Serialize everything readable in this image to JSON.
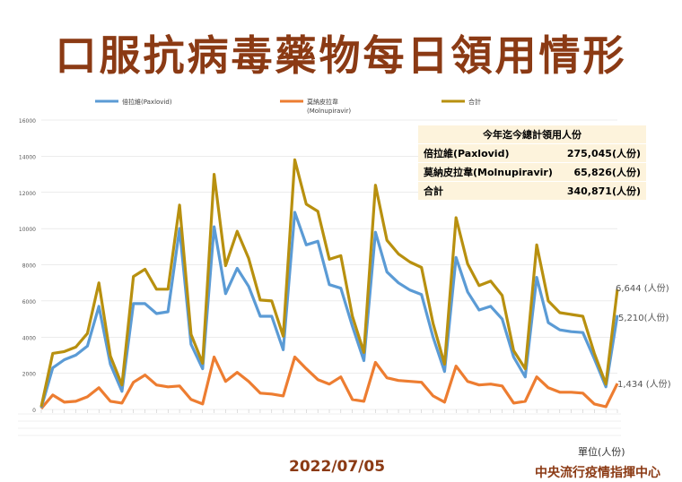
{
  "title": "口服抗病毒藥物每日領用情形",
  "date": "2022/07/05",
  "organization": "中央流行疫情指揮中心",
  "unit_label": "單位(人份)",
  "summary_table": {
    "header": "今年迄今總計領用人份",
    "rows": [
      {
        "label": "倍拉維(Paxlovid)",
        "value": "275,045(人份)"
      },
      {
        "label": "莫納皮拉韋(Molnupiravir)",
        "value": "65,826(人份)"
      },
      {
        "label": "合計",
        "value": "340,871(人份)"
      }
    ]
  },
  "end_labels": {
    "total": "6,644 (人份)",
    "paxlovid": "5,210(人份)",
    "molnupiravir": "1,434 (人份)"
  },
  "colors": {
    "paxlovid": "#5b9bd5",
    "molnupiravir": "#ed7d31",
    "total": "#b8900f",
    "title": "#8b3a14"
  },
  "chart_data": {
    "type": "line",
    "legend": [
      {
        "name": "倍拉維(Paxlovid)"
      },
      {
        "name": "莫納皮拉韋 (Molnupiravir)"
      },
      {
        "name": "合計"
      }
    ],
    "legend_position": "top",
    "ylim": [
      0,
      16000
    ],
    "yticks": [
      0,
      2000,
      4000,
      6000,
      8000,
      10000,
      12000,
      14000,
      16000
    ],
    "grid": true,
    "series": [
      {
        "name": "倍拉維(Paxlovid)",
        "values": [
          100,
          2300,
          2750,
          3000,
          3500,
          5700,
          2500,
          1000,
          5850,
          5850,
          5300,
          5400,
          10000,
          3600,
          2250,
          10100,
          6400,
          7800,
          6800,
          5150,
          5150,
          3300,
          10900,
          9100,
          9300,
          6900,
          6700,
          4600,
          2700,
          9800,
          7600,
          7000,
          6600,
          6350,
          4000,
          2100,
          8400,
          6500,
          5500,
          5700,
          5000,
          2900,
          1800,
          7300,
          4800,
          4400,
          4300,
          4250,
          2800,
          1250,
          5210
        ]
      },
      {
        "name": "莫納皮拉韋 (Molnupiravir)",
        "values": [
          50,
          800,
          400,
          450,
          700,
          1200,
          450,
          350,
          1500,
          1900,
          1350,
          1250,
          1300,
          550,
          300,
          2900,
          1550,
          2050,
          1550,
          900,
          850,
          750,
          2900,
          2250,
          1650,
          1400,
          1800,
          550,
          450,
          2600,
          1750,
          1600,
          1550,
          1500,
          750,
          400,
          2400,
          1550,
          1350,
          1400,
          1300,
          350,
          450,
          1800,
          1200,
          950,
          950,
          900,
          300,
          150,
          1434
        ]
      },
      {
        "name": "合計",
        "values": [
          150,
          3100,
          3200,
          3450,
          4200,
          7000,
          2950,
          1350,
          7350,
          7750,
          6650,
          6650,
          11300,
          4150,
          2550,
          13000,
          7950,
          9850,
          8350,
          6050,
          6000,
          4050,
          13800,
          11350,
          10950,
          8300,
          8500,
          5150,
          3150,
          12400,
          9350,
          8600,
          8150,
          7850,
          4750,
          2500,
          10600,
          8050,
          6850,
          7100,
          6300,
          3250,
          2250,
          9100,
          6000,
          5350,
          5250,
          5150,
          3100,
          1400,
          6644
        ]
      }
    ]
  }
}
